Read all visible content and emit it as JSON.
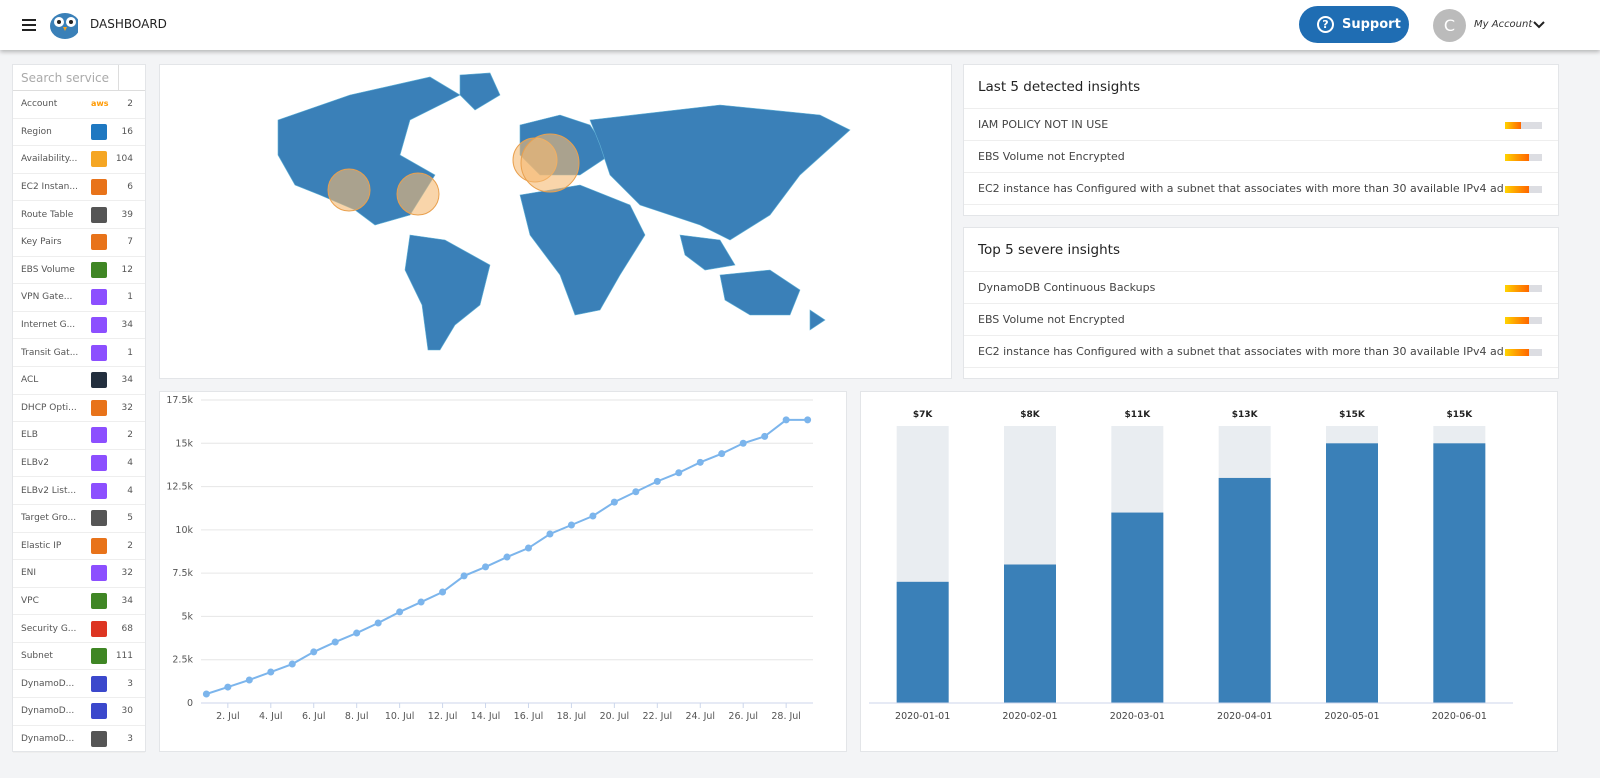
{
  "header": {
    "title": "DASHBOARD",
    "support": "Support",
    "avatar": "C",
    "account": "My Account"
  },
  "sidebar": {
    "search": "Search service",
    "items": [
      {
        "name": "Account",
        "count": 2,
        "color": "#ff9900",
        "icon_text": "aws"
      },
      {
        "name": "Region",
        "count": 16,
        "color": "#1f78c1"
      },
      {
        "name": "Availability...",
        "count": 104,
        "color": "#f5a623"
      },
      {
        "name": "EC2 Instan...",
        "count": 6,
        "color": "#e8731a"
      },
      {
        "name": "Route Table",
        "count": 39,
        "color": "#555555"
      },
      {
        "name": "Key Pairs",
        "count": 7,
        "color": "#e8731a"
      },
      {
        "name": "EBS Volume",
        "count": 12,
        "color": "#3f8624"
      },
      {
        "name": "VPN Gate...",
        "count": 1,
        "color": "#8c4fff"
      },
      {
        "name": "Internet G...",
        "count": 34,
        "color": "#8c4fff"
      },
      {
        "name": "Transit Gat...",
        "count": 1,
        "color": "#8c4fff"
      },
      {
        "name": "ACL",
        "count": 34,
        "color": "#232f3e"
      },
      {
        "name": "DHCP Opti...",
        "count": 32,
        "color": "#e8731a"
      },
      {
        "name": "ELB",
        "count": 2,
        "color": "#8c4fff"
      },
      {
        "name": "ELBv2",
        "count": 4,
        "color": "#8c4fff"
      },
      {
        "name": "ELBv2 List...",
        "count": 4,
        "color": "#8c4fff"
      },
      {
        "name": "Target Gro...",
        "count": 5,
        "color": "#555555"
      },
      {
        "name": "Elastic IP",
        "count": 2,
        "color": "#e8731a"
      },
      {
        "name": "ENI",
        "count": 32,
        "color": "#8c4fff"
      },
      {
        "name": "VPC",
        "count": 34,
        "color": "#3f8624"
      },
      {
        "name": "Security G...",
        "count": 68,
        "color": "#dd3522"
      },
      {
        "name": "Subnet",
        "count": 111,
        "color": "#3f8624"
      },
      {
        "name": "DynamoD...",
        "count": 3,
        "color": "#3b48cc"
      },
      {
        "name": "DynamoD...",
        "count": 30,
        "color": "#3b48cc"
      },
      {
        "name": "DynamoD...",
        "count": 3,
        "color": "#555555"
      }
    ]
  },
  "insights": [
    {
      "title": "Last 5 detected insights",
      "items": [
        "IAM POLICY NOT IN USE",
        "EBS Volume not Encrypted",
        "EC2 instance has Configured with a subnet that associates with more than 30 available IPv4 ad..."
      ]
    },
    {
      "title": "Top 5 severe insights",
      "items": [
        "DynamoDB Continuous Backups",
        "EBS Volume not Encrypted",
        "EC2 instance has Configured with a subnet that associates with more than 30 available IPv4 ad..."
      ]
    }
  ],
  "chart_data": [
    {
      "type": "line",
      "color": "#7cb5ec",
      "grid": true,
      "x": [
        1,
        2,
        3,
        4,
        5,
        6,
        7,
        8,
        9,
        10,
        11,
        12,
        13,
        14,
        15,
        16,
        17,
        18,
        19,
        20,
        21,
        22,
        23,
        24,
        25,
        26,
        27,
        28,
        29
      ],
      "values": [
        520,
        920,
        1330,
        1790,
        2250,
        2950,
        3520,
        4040,
        4620,
        5260,
        5830,
        6410,
        7340,
        7860,
        8430,
        8950,
        9760,
        10280,
        10800,
        11600,
        12200,
        12800,
        13300,
        13900,
        14400,
        15000,
        15400,
        16350,
        16350
      ],
      "xlim": [
        0.75,
        29.25
      ],
      "xticks": [
        {
          "value": 2,
          "label": "2. Jul"
        },
        {
          "value": 4,
          "label": "4. Jul"
        },
        {
          "value": 6,
          "label": "6. Jul"
        },
        {
          "value": 8,
          "label": "8. Jul"
        },
        {
          "value": 10,
          "label": "10. Jul"
        },
        {
          "value": 12,
          "label": "12. Jul"
        },
        {
          "value": 14,
          "label": "14. Jul"
        },
        {
          "value": 16,
          "label": "16. Jul"
        },
        {
          "value": 18,
          "label": "18. Jul"
        },
        {
          "value": 20,
          "label": "20. Jul"
        },
        {
          "value": 22,
          "label": "22. Jul"
        },
        {
          "value": 24,
          "label": "24. Jul"
        },
        {
          "value": 26,
          "label": "26. Jul"
        },
        {
          "value": 28,
          "label": "28. Jul"
        }
      ],
      "ylim": [
        0,
        17500
      ],
      "yticks": [
        0,
        {
          "value": 2500,
          "label": "2.5k"
        },
        {
          "value": 5000,
          "label": "5k"
        },
        {
          "value": 7500,
          "label": "7.5k"
        },
        {
          "value": 10000,
          "label": "10k"
        },
        {
          "value": 12500,
          "label": "12.5k"
        },
        {
          "value": 15000,
          "label": "15k"
        },
        {
          "value": 17500,
          "label": "17.5k"
        }
      ]
    },
    {
      "type": "bar",
      "color": "#3a80b8",
      "track_color": "#e9edf1",
      "categories": [
        "2020-01-01",
        "2020-02-01",
        "2020-03-01",
        "2020-04-01",
        "2020-05-01",
        "2020-06-01"
      ],
      "values": [
        7000,
        8000,
        11000,
        13000,
        15000,
        15000
      ],
      "value_labels": [
        "$7K",
        "$8K",
        "$11K",
        "$13K",
        "$15K",
        "$15K"
      ],
      "ylim": [
        0,
        16000
      ]
    }
  ]
}
